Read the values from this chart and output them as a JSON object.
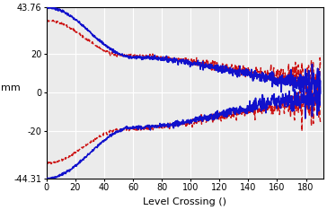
{
  "title": "",
  "xlabel": "Level Crossing ()",
  "ylabel": "mm",
  "xlim": [
    0,
    192
  ],
  "ylim": [
    -44.31,
    43.76
  ],
  "yticks": [
    -44.31,
    -20,
    0,
    20,
    43.76
  ],
  "ytick_labels": [
    "-44.31",
    "-20",
    "0",
    "20",
    "43.76"
  ],
  "xticks": [
    0,
    20,
    40,
    60,
    80,
    100,
    120,
    140,
    160,
    180
  ],
  "blue_color": "#1111cc",
  "red_color": "#cc1111",
  "bg_color": "#ebebeb",
  "linewidth_blue": 1.2,
  "linewidth_red": 1.0,
  "x_max": 190
}
